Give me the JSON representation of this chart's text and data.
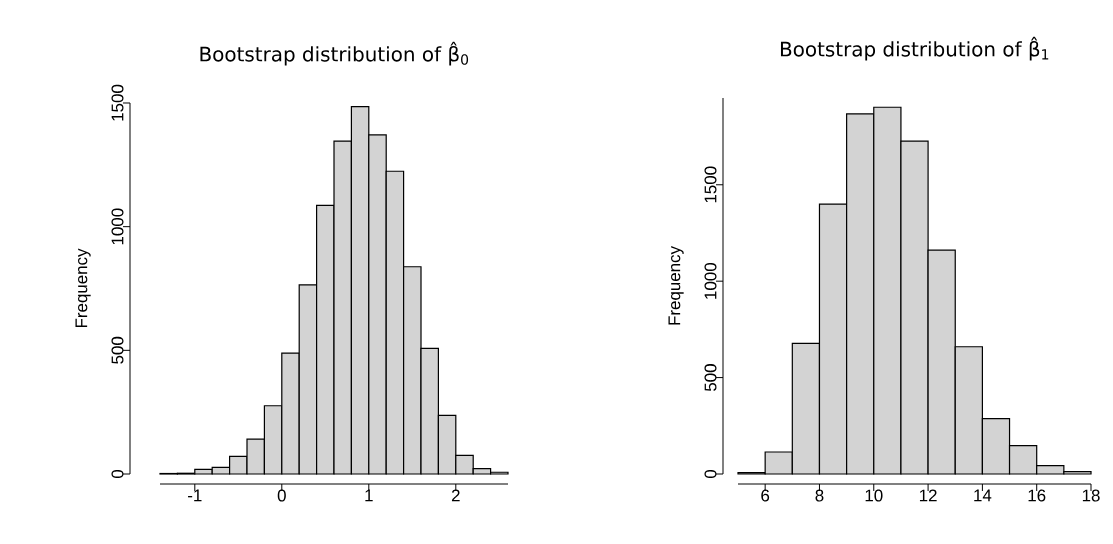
{
  "chart_data": [
    {
      "type": "histogram",
      "title": "Bootstrap distribution of β̂$_{0}$",
      "ylabel": "Frequency",
      "color": "#d3d3d3",
      "bins": [
        -1.4,
        -1.2,
        -1.0,
        -0.8,
        -0.6,
        -0.4,
        -0.2,
        0.0,
        0.2,
        0.4,
        0.6,
        0.8,
        1.0,
        1.2,
        1.4,
        1.6,
        1.8,
        2.0,
        2.2,
        2.4,
        2.6
      ],
      "values": [
        2,
        3,
        19,
        27,
        71,
        141,
        276,
        489,
        765,
        1086,
        1346,
        1485,
        1371,
        1224,
        838,
        508,
        237,
        75,
        22,
        7
      ],
      "xlim": [
        -1.4,
        2.6
      ],
      "ylim": [
        0,
        1500
      ],
      "xticks": [
        -1,
        0,
        1,
        2
      ],
      "yticks": [
        0,
        500,
        1000,
        1500
      ]
    },
    {
      "type": "histogram",
      "title": "Bootstrap distribution of β̂$_{1}$",
      "ylabel": "Frequency",
      "color": "#d3d3d3",
      "bins": [
        5,
        6,
        7,
        8,
        9,
        10,
        11,
        12,
        13,
        14,
        15,
        16,
        17,
        18
      ],
      "values": [
        7,
        114,
        677,
        1400,
        1868,
        1902,
        1726,
        1161,
        660,
        287,
        147,
        43,
        12
      ],
      "xlim": [
        5,
        18
      ],
      "ylim": [
        0,
        1950
      ],
      "xticks": [
        6,
        8,
        10,
        12,
        14,
        16,
        18
      ],
      "yticks": [
        0,
        500,
        1000,
        1500
      ]
    }
  ]
}
